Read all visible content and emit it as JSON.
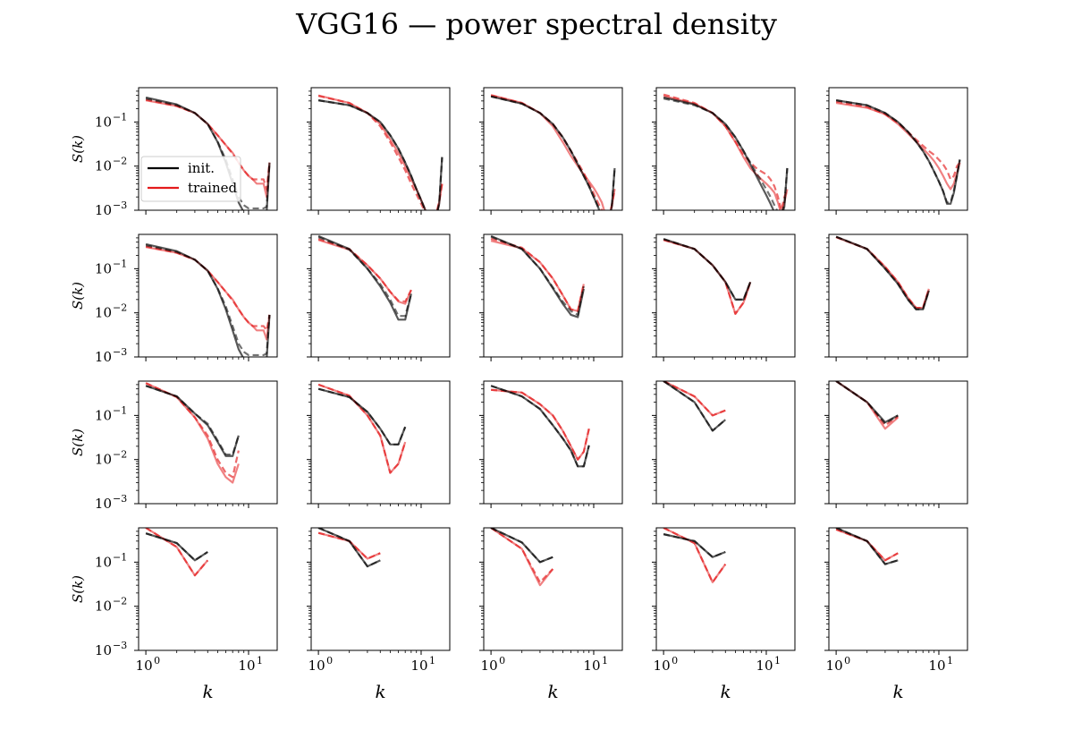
{
  "chart_data": {
    "type": "line",
    "title": "VGG16 — power spectral density",
    "xlabel": "k",
    "ylabel": "S(k)",
    "xscale": "log",
    "yscale": "log",
    "xlim": [
      0.85,
      19
    ],
    "ylim": [
      0.001,
      0.6
    ],
    "x_ticks": [
      {
        "base": "10",
        "exp": "0",
        "value": 1
      },
      {
        "base": "10",
        "exp": "1",
        "value": 10
      }
    ],
    "y_ticks": [
      {
        "base": "10",
        "exp": "−1",
        "value": 0.1
      },
      {
        "base": "10",
        "exp": "−2",
        "value": 0.01
      },
      {
        "base": "10",
        "exp": "−3",
        "value": 0.001
      }
    ],
    "legend": {
      "location": "lower-left",
      "entries": [
        {
          "label": "init.",
          "color": "#000000"
        },
        {
          "label": "trained",
          "color": "#e41a1c"
        }
      ]
    },
    "colors": {
      "init": "#000000",
      "trained": "#e41a1c",
      "frame": "#000000"
    },
    "grid": false,
    "layout": {
      "rows": 4,
      "cols": 5
    },
    "panels": [
      {
        "init_solid": [
          0.36,
          0.25,
          0.16,
          0.09,
          0.035,
          0.012,
          0.004,
          0.0015,
          0.0009,
          0.0008,
          0.0008,
          0.0008,
          0.0008,
          0.0008,
          0.0009,
          0.012
        ],
        "init_dashed": [
          0.34,
          0.24,
          0.16,
          0.09,
          0.036,
          0.014,
          0.005,
          0.002,
          0.0013,
          0.0011,
          0.0011,
          0.0011,
          0.0011,
          0.0011,
          0.0012,
          0.012
        ],
        "trained_solid": [
          0.31,
          0.23,
          0.16,
          0.09,
          0.05,
          0.03,
          0.02,
          0.012,
          0.008,
          0.006,
          0.005,
          0.004,
          0.004,
          0.004,
          0.002,
          0.012
        ],
        "trained_dashed": [
          0.32,
          0.23,
          0.16,
          0.09,
          0.05,
          0.03,
          0.019,
          0.012,
          0.008,
          0.006,
          0.005,
          0.005,
          0.005,
          0.005,
          0.003,
          0.012
        ]
      },
      {
        "init_solid": [
          0.31,
          0.24,
          0.16,
          0.1,
          0.05,
          0.025,
          0.012,
          0.006,
          0.003,
          0.0017,
          0.001,
          0.0007,
          0.0007,
          0.0007,
          0.0014,
          0.016
        ],
        "init_dashed": [
          0.31,
          0.24,
          0.16,
          0.1,
          0.05,
          0.025,
          0.012,
          0.006,
          0.003,
          0.0017,
          0.001,
          0.0007,
          0.0007,
          0.0007,
          0.0014,
          0.016
        ],
        "trained_solid": [
          0.4,
          0.27,
          0.16,
          0.09,
          0.04,
          0.02,
          0.01,
          0.005,
          0.003,
          0.0017,
          0.001,
          0.0007,
          0.0007,
          0.0008,
          0.0015,
          0.004
        ],
        "trained_dashed": [
          0.39,
          0.27,
          0.16,
          0.08,
          0.035,
          0.016,
          0.008,
          0.004,
          0.0023,
          0.0014,
          0.0009,
          0.0007,
          0.0007,
          0.0008,
          0.0016,
          0.004
        ]
      },
      {
        "init_solid": [
          0.38,
          0.26,
          0.16,
          0.09,
          0.045,
          0.022,
          0.011,
          0.006,
          0.0035,
          0.002,
          0.0012,
          0.0007,
          0.0006,
          0.0006,
          0.0012,
          0.009
        ],
        "init_dashed": [
          0.38,
          0.26,
          0.16,
          0.09,
          0.045,
          0.022,
          0.011,
          0.006,
          0.0035,
          0.002,
          0.0012,
          0.0007,
          0.0006,
          0.0006,
          0.0012,
          0.009
        ],
        "trained_solid": [
          0.41,
          0.27,
          0.16,
          0.08,
          0.035,
          0.017,
          0.01,
          0.0065,
          0.0045,
          0.0032,
          0.0022,
          0.0015,
          0.0008,
          0.0007,
          0.0012,
          0.003
        ],
        "trained_dashed": [
          0.4,
          0.27,
          0.16,
          0.09,
          0.045,
          0.022,
          0.012,
          0.007,
          0.004,
          0.0024,
          0.0015,
          0.001,
          0.0008,
          0.0007,
          0.0013,
          0.003
        ]
      },
      {
        "init_solid": [
          0.36,
          0.25,
          0.16,
          0.09,
          0.045,
          0.022,
          0.011,
          0.006,
          0.0035,
          0.0022,
          0.0014,
          0.0009,
          0.0007,
          0.0007,
          0.0012,
          0.009
        ],
        "init_dashed": [
          0.34,
          0.24,
          0.16,
          0.09,
          0.045,
          0.022,
          0.012,
          0.007,
          0.0045,
          0.003,
          0.002,
          0.0013,
          0.0009,
          0.0008,
          0.0014,
          0.009
        ],
        "trained_solid": [
          0.39,
          0.26,
          0.16,
          0.08,
          0.035,
          0.016,
          0.009,
          0.0065,
          0.005,
          0.004,
          0.0032,
          0.0025,
          0.0015,
          0.0008,
          0.0015,
          0.003
        ],
        "trained_dashed": [
          0.42,
          0.27,
          0.16,
          0.08,
          0.036,
          0.018,
          0.012,
          0.009,
          0.0075,
          0.0065,
          0.005,
          0.0035,
          0.002,
          0.001,
          0.002,
          0.003
        ]
      },
      {
        "init_solid": [
          0.31,
          0.24,
          0.16,
          0.1,
          0.06,
          0.036,
          0.022,
          0.013,
          0.0075,
          0.0045,
          0.0027,
          0.0014,
          0.0014,
          0.0025,
          0.006,
          0.014
        ],
        "init_dashed": [
          0.31,
          0.24,
          0.16,
          0.1,
          0.06,
          0.036,
          0.022,
          0.013,
          0.0075,
          0.0045,
          0.0027,
          0.0015,
          0.0015,
          0.0028,
          0.006,
          0.014
        ],
        "trained_solid": [
          0.27,
          0.21,
          0.15,
          0.09,
          0.055,
          0.036,
          0.025,
          0.018,
          0.013,
          0.009,
          0.006,
          0.004,
          0.003,
          0.004,
          0.007,
          0.012
        ],
        "trained_dashed": [
          0.29,
          0.22,
          0.15,
          0.095,
          0.06,
          0.04,
          0.029,
          0.022,
          0.018,
          0.014,
          0.011,
          0.008,
          0.005,
          0.006,
          0.01,
          0.012
        ]
      },
      {
        "init_solid": [
          0.36,
          0.25,
          0.16,
          0.09,
          0.035,
          0.012,
          0.004,
          0.0015,
          0.0009,
          0.0008,
          0.0008,
          0.0008,
          0.0008,
          0.0008,
          0.0009,
          0.009
        ],
        "init_dashed": [
          0.34,
          0.24,
          0.16,
          0.09,
          0.036,
          0.014,
          0.005,
          0.002,
          0.0013,
          0.0011,
          0.0011,
          0.0011,
          0.0011,
          0.0011,
          0.0012,
          0.009
        ],
        "trained_solid": [
          0.31,
          0.23,
          0.16,
          0.09,
          0.05,
          0.03,
          0.02,
          0.012,
          0.008,
          0.006,
          0.005,
          0.004,
          0.004,
          0.004,
          0.0025,
          0.009
        ],
        "trained_dashed": [
          0.32,
          0.23,
          0.16,
          0.09,
          0.05,
          0.03,
          0.019,
          0.012,
          0.008,
          0.006,
          0.005,
          0.005,
          0.005,
          0.005,
          0.004,
          0.009
        ]
      },
      {
        "init_solid": [
          0.55,
          0.28,
          0.1,
          0.04,
          0.017,
          0.007,
          0.007,
          0.027
        ],
        "init_dashed": [
          0.52,
          0.27,
          0.1,
          0.045,
          0.02,
          0.0085,
          0.0085,
          0.027
        ],
        "trained_solid": [
          0.45,
          0.27,
          0.12,
          0.06,
          0.03,
          0.018,
          0.016,
          0.033
        ],
        "trained_dashed": [
          0.47,
          0.28,
          0.12,
          0.06,
          0.03,
          0.019,
          0.018,
          0.033
        ]
      },
      {
        "init_solid": [
          0.55,
          0.28,
          0.1,
          0.036,
          0.016,
          0.009,
          0.008,
          0.035
        ],
        "init_dashed": [
          0.53,
          0.28,
          0.1,
          0.038,
          0.018,
          0.011,
          0.009,
          0.04
        ],
        "trained_solid": [
          0.43,
          0.29,
          0.14,
          0.06,
          0.025,
          0.012,
          0.011,
          0.045
        ],
        "trained_dashed": [
          0.48,
          0.3,
          0.14,
          0.06,
          0.025,
          0.012,
          0.011,
          0.045
        ]
      },
      {
        "init_solid": [
          0.47,
          0.28,
          0.12,
          0.05,
          0.02,
          0.02,
          0.05
        ],
        "init_dashed": [
          0.47,
          0.28,
          0.12,
          0.05,
          0.02,
          0.02,
          0.05
        ],
        "trained_solid": [
          0.45,
          0.28,
          0.12,
          0.05,
          0.0095,
          0.017,
          0.05
        ],
        "trained_dashed": [
          0.45,
          0.28,
          0.12,
          0.05,
          0.0095,
          0.017,
          0.05
        ]
      },
      {
        "init_solid": [
          0.53,
          0.28,
          0.1,
          0.045,
          0.02,
          0.012,
          0.012,
          0.032
        ],
        "init_dashed": [
          0.53,
          0.28,
          0.1,
          0.045,
          0.02,
          0.012,
          0.012,
          0.032
        ],
        "trained_solid": [
          0.52,
          0.28,
          0.11,
          0.05,
          0.022,
          0.013,
          0.013,
          0.035
        ],
        "trained_dashed": [
          0.52,
          0.28,
          0.11,
          0.05,
          0.022,
          0.013,
          0.013,
          0.035
        ]
      },
      {
        "init_solid": [
          0.47,
          0.27,
          0.11,
          0.06,
          0.025,
          0.012,
          0.012,
          0.035
        ],
        "init_dashed": [
          0.47,
          0.27,
          0.11,
          0.065,
          0.027,
          0.013,
          0.013,
          0.035
        ],
        "trained_solid": [
          0.54,
          0.26,
          0.09,
          0.03,
          0.008,
          0.004,
          0.003,
          0.008
        ],
        "trained_dashed": [
          0.54,
          0.26,
          0.09,
          0.035,
          0.01,
          0.005,
          0.004,
          0.016
        ]
      },
      {
        "init_solid": [
          0.4,
          0.26,
          0.12,
          0.05,
          0.022,
          0.022,
          0.055
        ],
        "init_dashed": [
          0.4,
          0.26,
          0.12,
          0.05,
          0.022,
          0.022,
          0.055
        ],
        "trained_solid": [
          0.5,
          0.28,
          0.1,
          0.035,
          0.005,
          0.008,
          0.025
        ],
        "trained_dashed": [
          0.5,
          0.28,
          0.1,
          0.035,
          0.005,
          0.008,
          0.025
        ]
      },
      {
        "init_solid": [
          0.47,
          0.27,
          0.14,
          0.06,
          0.03,
          0.016,
          0.007,
          0.007,
          0.021
        ],
        "init_dashed": [
          0.47,
          0.27,
          0.14,
          0.06,
          0.03,
          0.016,
          0.007,
          0.007,
          0.021
        ],
        "trained_solid": [
          0.38,
          0.33,
          0.18,
          0.1,
          0.045,
          0.02,
          0.01,
          0.015,
          0.05
        ],
        "trained_dashed": [
          0.38,
          0.33,
          0.18,
          0.1,
          0.045,
          0.02,
          0.01,
          0.015,
          0.05
        ]
      },
      {
        "init_solid": [
          0.6,
          0.2,
          0.045,
          0.08
        ],
        "init_dashed": [
          0.6,
          0.2,
          0.045,
          0.08
        ],
        "trained_solid": [
          0.6,
          0.27,
          0.1,
          0.13
        ],
        "trained_dashed": [
          0.6,
          0.27,
          0.1,
          0.13
        ]
      },
      {
        "init_solid": [
          0.6,
          0.2,
          0.07,
          0.1
        ],
        "init_dashed": [
          0.6,
          0.2,
          0.065,
          0.1
        ],
        "trained_solid": [
          0.6,
          0.2,
          0.05,
          0.09
        ],
        "trained_dashed": [
          0.6,
          0.2,
          0.06,
          0.095
        ]
      },
      {
        "init_solid": [
          0.45,
          0.27,
          0.11,
          0.17
        ],
        "init_dashed": [
          0.45,
          0.27,
          0.11,
          0.17
        ],
        "trained_solid": [
          0.6,
          0.22,
          0.05,
          0.11
        ],
        "trained_dashed": [
          0.6,
          0.22,
          0.05,
          0.11
        ]
      },
      {
        "init_solid": [
          0.6,
          0.3,
          0.08,
          0.11
        ],
        "init_dashed": [
          0.6,
          0.3,
          0.08,
          0.11
        ],
        "trained_solid": [
          0.46,
          0.3,
          0.12,
          0.16
        ],
        "trained_dashed": [
          0.46,
          0.3,
          0.12,
          0.16
        ]
      },
      {
        "init_solid": [
          0.6,
          0.28,
          0.1,
          0.13
        ],
        "init_dashed": [
          0.6,
          0.28,
          0.1,
          0.13
        ],
        "trained_solid": [
          0.6,
          0.2,
          0.03,
          0.07
        ],
        "trained_dashed": [
          0.6,
          0.2,
          0.035,
          0.07
        ]
      },
      {
        "init_solid": [
          0.43,
          0.3,
          0.13,
          0.17
        ],
        "init_dashed": [
          0.43,
          0.3,
          0.13,
          0.17
        ],
        "trained_solid": [
          0.6,
          0.27,
          0.035,
          0.09
        ],
        "trained_dashed": [
          0.6,
          0.27,
          0.035,
          0.09
        ]
      },
      {
        "init_solid": [
          0.6,
          0.3,
          0.09,
          0.11
        ],
        "init_dashed": [
          0.6,
          0.3,
          0.09,
          0.11
        ],
        "trained_solid": [
          0.55,
          0.3,
          0.11,
          0.16
        ],
        "trained_dashed": [
          0.55,
          0.3,
          0.11,
          0.16
        ]
      }
    ]
  }
}
